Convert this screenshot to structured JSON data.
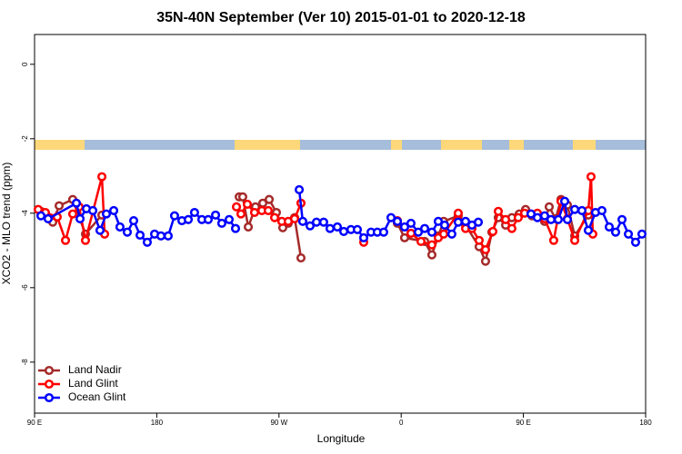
{
  "chart_data": {
    "type": "line",
    "title": "35N-40N September (Ver 10)   2015-01-01 to 2020-12-18",
    "xlabel": "Longitude",
    "ylabel": "XCO2 - MLO trend (ppm)",
    "xlim": [
      90,
      540
    ],
    "xticks": [
      {
        "value": 90,
        "label": "90 E"
      },
      180,
      {
        "value": 270,
        "label": "90 W"
      },
      {
        "value": 360,
        "label": "0"
      },
      {
        "value": 450,
        "label": "90 E"
      },
      {
        "value": 540,
        "label": "180"
      }
    ],
    "ylim": [
      -9.37,
      0.8
    ],
    "yticks": [
      0,
      -2,
      -4,
      -6,
      -8
    ],
    "legend": "bottom-left",
    "series": [
      {
        "name": "Land Nadir",
        "color": "#a52a2a",
        "x": [
          94.7,
          103.4,
          108.1,
          118.1,
          127.5,
          139.6,
          null,
          240.7,
          243.3,
          247.4,
          252.7,
          258.1,
          262.8,
          268.1,
          272.8,
          276.8,
          281.5,
          286.2,
          null,
          357.2,
          362.5,
          377.3,
          382.6,
          387.3,
          391.3,
          402.0,
          407.4,
          417.4,
          422.1,
          426.8,
          431.5,
          436.9,
          441.5,
          446.9,
          451.6,
          456.3,
          465.6,
          469.0,
          473.7,
          477.7,
          482.4,
          487.8,
          497.8
        ],
        "values": [
          -3.95,
          -4.24,
          -3.8,
          -3.63,
          -4.56,
          -4.05,
          null,
          -3.56,
          -3.56,
          -4.37,
          -3.83,
          -3.73,
          -3.63,
          -3.98,
          -4.39,
          -4.27,
          -4.12,
          -5.2,
          null,
          -4.27,
          -4.66,
          -4.76,
          -5.12,
          -4.61,
          -4.22,
          -4.07,
          -4.32,
          -4.9,
          -5.29,
          -4.51,
          -4.12,
          -4.32,
          -4.12,
          -4.02,
          -3.9,
          -4.07,
          -4.22,
          -3.83,
          -4.15,
          -3.63,
          -3.78,
          -4.61,
          -4.05
        ]
      },
      {
        "name": "Land Glint",
        "color": "#ff0000",
        "x": [
          92.7,
          98.0,
          106.7,
          112.8,
          118.1,
          122.8,
          127.5,
          139.6,
          141.6,
          null,
          238.7,
          242.0,
          246.7,
          252.0,
          257.4,
          262.1,
          266.8,
          272.1,
          276.8,
          281.5,
          286.2,
          null,
          332.4,
          null,
          357.2,
          367.2,
          374.6,
          382.6,
          387.3,
          391.3,
          402.0,
          407.4,
          412.1,
          417.4,
          422.1,
          427.5,
          431.5,
          436.9,
          441.5,
          446.2,
          450.9,
          455.6,
          460.3,
          465.6,
          472.3,
          477.7,
          482.4,
          487.8,
          497.8,
          499.8,
          501.1
        ],
        "values": [
          -3.9,
          -3.98,
          -4.1,
          -4.73,
          -4.02,
          -3.83,
          -4.73,
          -3.02,
          -4.56,
          null,
          -3.83,
          -4.02,
          -3.76,
          -3.98,
          -3.93,
          -3.93,
          -4.12,
          -4.22,
          -4.22,
          -4.15,
          -3.73,
          null,
          -4.78,
          null,
          -4.2,
          -4.54,
          -4.76,
          -4.85,
          -4.66,
          -4.56,
          -4.0,
          -4.41,
          -4.41,
          -4.73,
          -4.98,
          -4.49,
          -3.95,
          -4.17,
          -4.41,
          -4.12,
          -4.0,
          -4.02,
          -4.0,
          -4.15,
          -4.73,
          -3.68,
          -4.15,
          -4.73,
          -3.93,
          -3.02,
          -4.56
        ]
      },
      {
        "name": "Ocean Glint",
        "color": "#0000ff",
        "x": [
          94.7,
          100.0,
          120.8,
          123.5,
          128.2,
          132.9,
          138.2,
          142.9,
          148.3,
          152.9,
          158.3,
          163.0,
          167.7,
          173.0,
          178.4,
          183.1,
          188.4,
          193.1,
          198.5,
          203.2,
          207.8,
          213.2,
          217.9,
          223.3,
          227.9,
          233.3,
          238.0,
          null,
          284.9,
          287.5,
          292.9,
          297.6,
          302.9,
          307.6,
          313.0,
          317.7,
          323.0,
          327.7,
          332.4,
          337.8,
          342.4,
          347.1,
          352.5,
          357.2,
          362.5,
          367.2,
          372.6,
          377.3,
          382.6,
          387.3,
          392.0,
          397.3,
          402.0,
          407.4,
          412.1,
          416.8,
          null,
          455.6,
          460.3,
          465.6,
          470.3,
          475.7,
          480.4,
          482.4,
          487.8,
          493.1,
          497.8,
          503.1,
          507.8,
          513.2,
          517.9,
          522.6,
          527.3,
          532.6,
          537.3
        ],
        "values": [
          -4.07,
          -4.15,
          -3.73,
          -4.15,
          -3.88,
          -3.93,
          -4.46,
          -4.02,
          -3.93,
          -4.37,
          -4.51,
          -4.2,
          -4.59,
          -4.78,
          -4.56,
          -4.61,
          -4.61,
          -4.07,
          -4.2,
          -4.17,
          -3.98,
          -4.17,
          -4.17,
          -4.05,
          -4.27,
          -4.17,
          -4.41,
          null,
          -3.37,
          -4.22,
          -4.34,
          -4.24,
          -4.24,
          -4.41,
          -4.37,
          -4.49,
          -4.44,
          -4.44,
          -4.66,
          -4.51,
          -4.51,
          -4.51,
          -4.12,
          -4.22,
          -4.37,
          -4.27,
          -4.51,
          -4.41,
          -4.51,
          -4.22,
          -4.32,
          -4.56,
          -4.24,
          -4.22,
          -4.32,
          -4.24,
          null,
          -4.02,
          -4.12,
          -4.07,
          -4.17,
          -4.17,
          -3.68,
          -4.17,
          -3.9,
          -3.93,
          -4.46,
          -3.98,
          -3.93,
          -4.37,
          -4.51,
          -4.17,
          -4.56,
          -4.78,
          -4.56
        ]
      }
    ]
  }
}
